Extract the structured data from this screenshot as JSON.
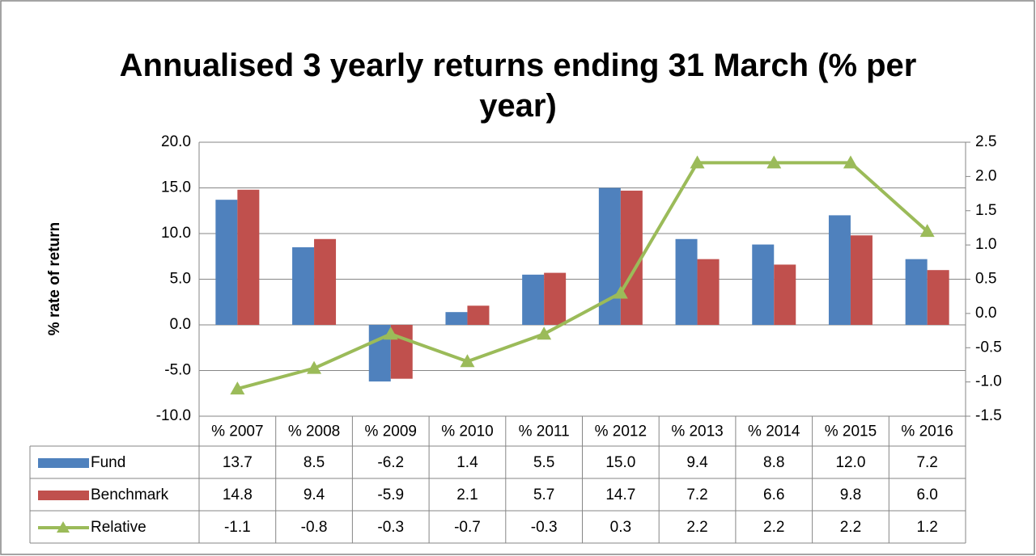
{
  "chart_data": {
    "type": "bar",
    "title": "Annualised 3 yearly returns ending 31 March (% per year)",
    "y_label": "% rate of return",
    "categories": [
      "% 2007",
      "% 2008",
      "% 2009",
      "% 2010",
      "% 2011",
      "% 2012",
      "% 2013",
      "% 2014",
      "% 2015",
      "% 2016"
    ],
    "series": [
      {
        "name": "Fund",
        "type": "bar",
        "color": "#4f81bd",
        "values": [
          13.7,
          8.5,
          -6.2,
          1.4,
          5.5,
          15.0,
          9.4,
          8.8,
          12.0,
          7.2
        ],
        "value_labels": [
          "13.7",
          "8.5",
          "-6.2",
          "1.4",
          "5.5",
          "15.0",
          "9.4",
          "8.8",
          "12.0",
          "7.2"
        ]
      },
      {
        "name": "Benchmark",
        "type": "bar",
        "color": "#c0504d",
        "values": [
          14.8,
          9.4,
          -5.9,
          2.1,
          5.7,
          14.7,
          7.2,
          6.6,
          9.8,
          6.0
        ],
        "value_labels": [
          "14.8",
          "9.4",
          "-5.9",
          "2.1",
          "5.7",
          "14.7",
          "7.2",
          "6.6",
          "9.8",
          "6.0"
        ]
      },
      {
        "name": "Relative",
        "type": "line",
        "axis": "y2",
        "color": "#9bbb59",
        "values": [
          -1.1,
          -0.8,
          -0.3,
          -0.7,
          -0.3,
          0.3,
          2.2,
          2.2,
          2.2,
          1.2
        ],
        "value_labels": [
          "-1.1",
          "-0.8",
          "-0.3",
          "-0.7",
          "-0.3",
          "0.3",
          "2.2",
          "2.2",
          "2.2",
          "1.2"
        ]
      }
    ],
    "ylim": [
      -10,
      20
    ],
    "yticks": [
      {
        "value": -10,
        "label": "-10.0"
      },
      {
        "value": -5,
        "label": "-5.0"
      },
      {
        "value": 0,
        "label": "0.0"
      },
      {
        "value": 5,
        "label": "5.0"
      },
      {
        "value": 10,
        "label": "10.0"
      },
      {
        "value": 15,
        "label": "15.0"
      },
      {
        "value": 20,
        "label": "20.0"
      }
    ],
    "y2lim": [
      -1.5,
      2.5
    ],
    "y2ticks": [
      -1.5,
      {
        "value": -1,
        "label": "-1.0"
      },
      -0.5,
      {
        "value": 0,
        "label": "0.0"
      },
      0.5,
      {
        "value": 1,
        "label": "1.0"
      },
      1.5,
      {
        "value": 2,
        "label": "2.0"
      },
      2.5
    ],
    "grid": true
  }
}
